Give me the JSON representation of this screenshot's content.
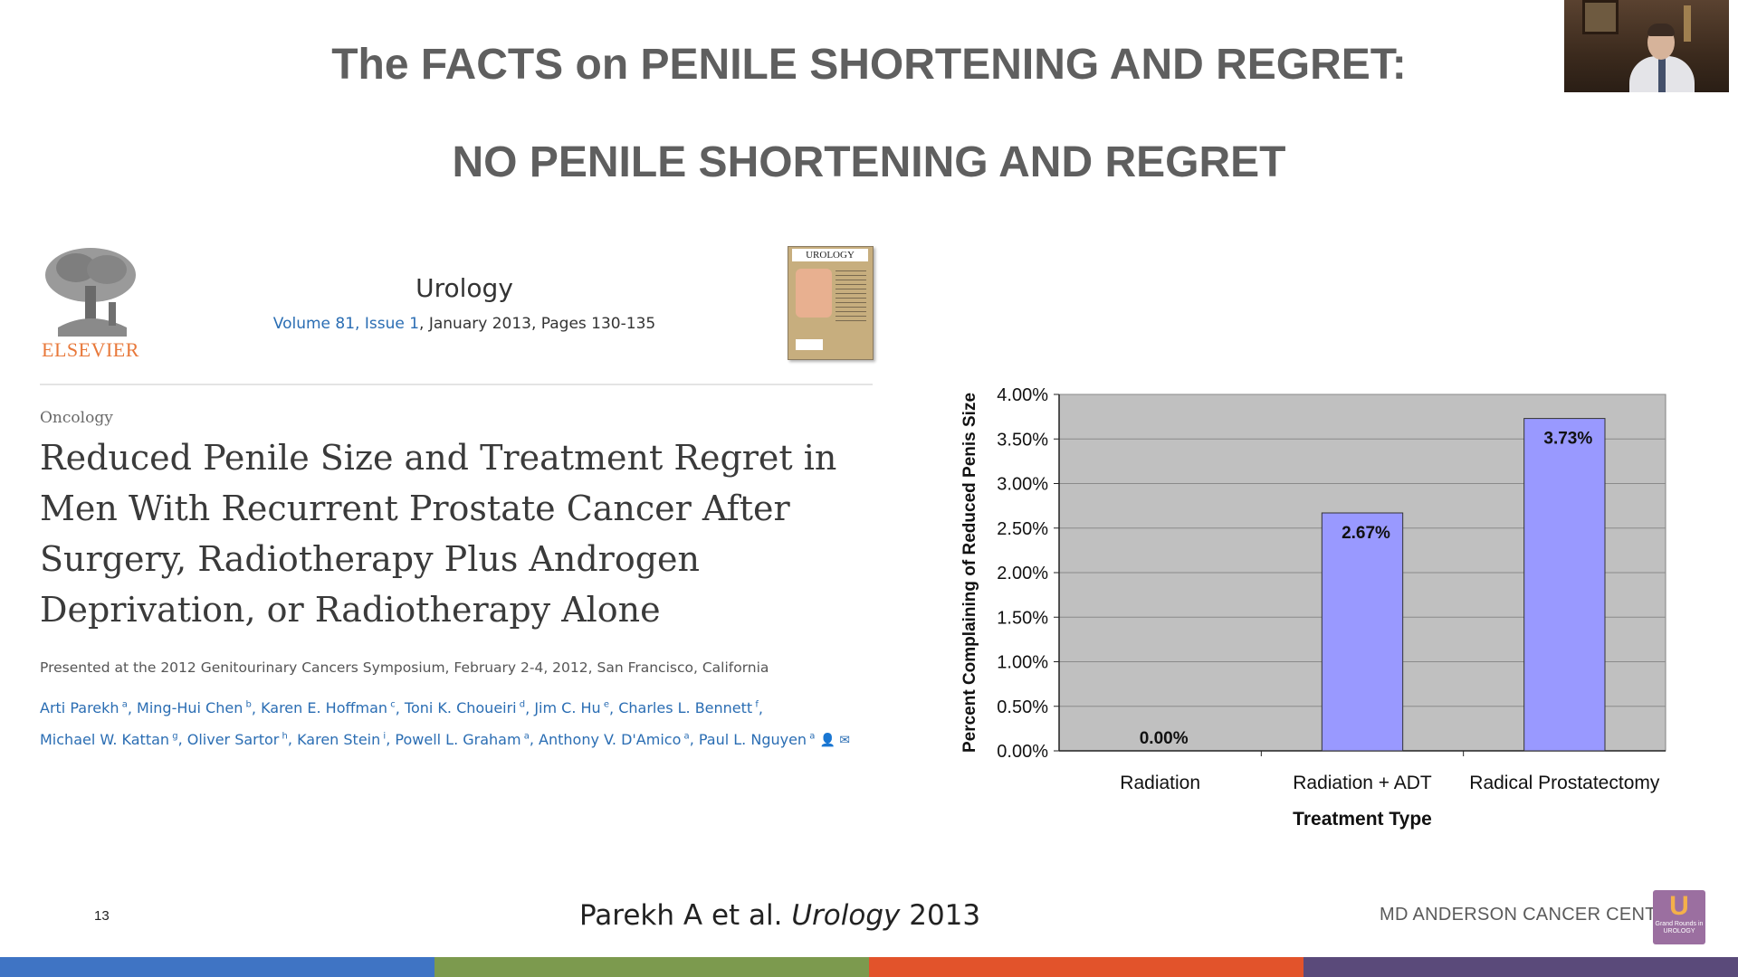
{
  "slide": {
    "title_line1": "The FACTS on PENILE SHORTENING AND REGRET:",
    "title_line2": "NO PENILE SHORTENING AND REGRET",
    "page_number": "13",
    "citation_prefix": "Parekh A et al. ",
    "citation_journal": "Urology",
    "citation_year": " 2013",
    "footer_org": "MD ANDERSON CANCER CENTER",
    "badge_letter": "U",
    "badge_sub": "Grand Rounds in UROLOGY",
    "footer_colors": [
      "#3f74c4",
      "#7c9a4e",
      "#e2532b",
      "#5a4a7a"
    ]
  },
  "article": {
    "publisher": "ELSEVIER",
    "journal": "Urology",
    "volume_link": "Volume 81, Issue 1",
    "date_pages": ", January 2013, Pages 130-135",
    "cover_title": "UROLOGY",
    "section": "Oncology",
    "title": "Reduced Penile Size and Treatment Regret in Men With Recurrent Prostate Cancer After Surgery, Radiotherapy Plus Androgen Deprivation, or Radiotherapy Alone",
    "presented": "Presented at the 2012 Genitourinary Cancers Symposium, February 2-4, 2012, San Francisco, California",
    "authors": [
      {
        "name": "Arti Parekh",
        "sup": "a"
      },
      {
        "name": "Ming-Hui Chen",
        "sup": "b"
      },
      {
        "name": "Karen E. Hoffman",
        "sup": "c"
      },
      {
        "name": "Toni K. Choueiri",
        "sup": "d"
      },
      {
        "name": "Jim C. Hu",
        "sup": "e"
      },
      {
        "name": "Charles L. Bennett",
        "sup": "f"
      },
      {
        "name": "Michael W. Kattan",
        "sup": "g"
      },
      {
        "name": "Oliver Sartor",
        "sup": "h"
      },
      {
        "name": "Karen Stein",
        "sup": "i"
      },
      {
        "name": "Powell L. Graham",
        "sup": "a"
      },
      {
        "name": "Anthony V. D'Amico",
        "sup": "a"
      },
      {
        "name": "Paul L. Nguyen",
        "sup": "a"
      }
    ],
    "author_icons": [
      "person-icon",
      "mail-icon"
    ]
  },
  "chart_data": {
    "type": "bar",
    "categories": [
      "Radiation",
      "Radiation + ADT",
      "Radical Prostatectomy"
    ],
    "values": [
      0.0,
      2.67,
      3.73
    ],
    "value_labels": [
      "0.00%",
      "2.67%",
      "3.73%"
    ],
    "xlabel": "Treatment Type",
    "ylabel": "Percent Complaining of Reduced Penis Size",
    "ylim": [
      0,
      4
    ],
    "ytick_values": [
      0,
      0.5,
      1,
      1.5,
      2,
      2.5,
      3,
      3.5,
      4
    ],
    "ytick_labels": [
      "0.00%",
      "0.50%",
      "1.00%",
      "1.50%",
      "2.00%",
      "2.50%",
      "3.00%",
      "3.50%",
      "4.00%"
    ],
    "grid": true,
    "legend": "none",
    "plot_background": "#c0c0c0",
    "bar_color": "#9999ff"
  }
}
